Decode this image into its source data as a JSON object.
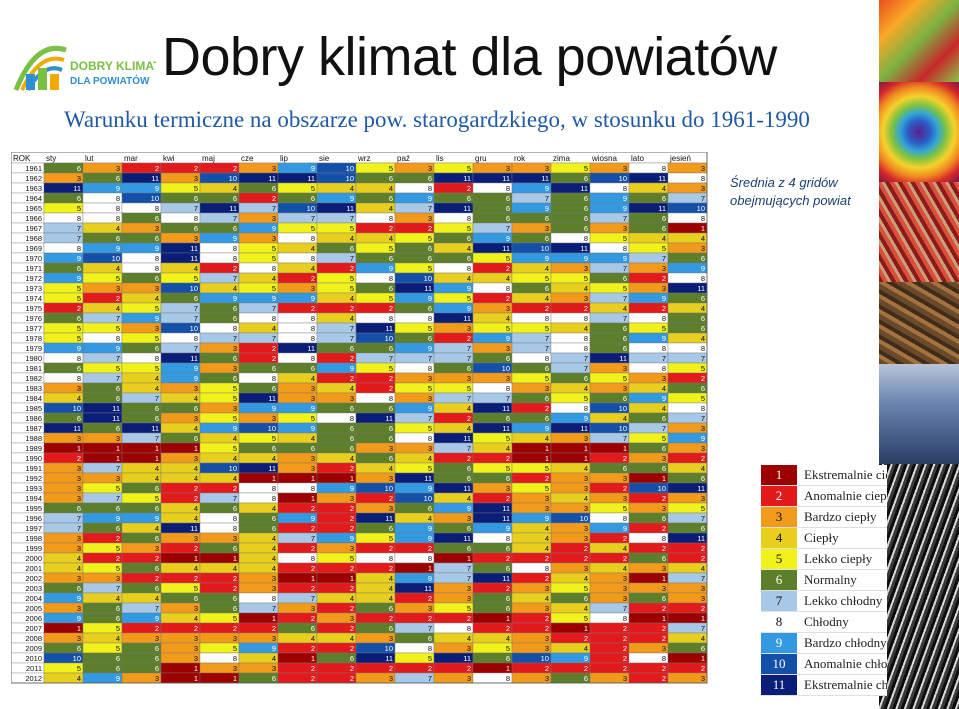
{
  "header": {
    "logo_text_line1": "DOBRY KLIMAT",
    "logo_text_line2": "DLA POWIATÓW",
    "title": "Dobry klimat dla powiatów",
    "subtitle": "Warunku termiczne na obszarze pow. starogardzkiego, w stosunku do 1961-1990"
  },
  "side_note": "Średnia z 4 gridów obejmujących powiat",
  "palette": {
    "1": "#9c0000",
    "2": "#e31a1c",
    "3": "#f29a1a",
    "4": "#e8cf1e",
    "5": "#f2f21b",
    "6": "#5d7f2b",
    "7": "#a8c8e8",
    "8": "#ffffff",
    "9": "#3399e0",
    "10": "#1450a8",
    "11": "#0a1e78"
  },
  "legend": [
    {
      "value": 1,
      "label": "Ekstremalnie ciepły"
    },
    {
      "value": 2,
      "label": "Anomalnie ciepły"
    },
    {
      "value": 3,
      "label": "Bardzo ciepły"
    },
    {
      "value": 4,
      "label": "Ciepły"
    },
    {
      "value": 5,
      "label": "Lekko ciepły"
    },
    {
      "value": 6,
      "label": "Normalny"
    },
    {
      "value": 7,
      "label": "Lekko chłodny"
    },
    {
      "value": 8,
      "label": "Chłodny"
    },
    {
      "value": 9,
      "label": "Bardzo chłodny"
    },
    {
      "value": 10,
      "label": "Anomalnie chłodny"
    },
    {
      "value": 11,
      "label": "Ekstremalnie chłodny"
    }
  ],
  "chart_data": {
    "type": "heatmap",
    "row_header": "ROK",
    "columns": [
      "sty",
      "lut",
      "mar",
      "kwi",
      "maj",
      "cze",
      "lip",
      "sie",
      "wrz",
      "paź",
      "lis",
      "gru",
      "rok",
      "zima",
      "wiosna",
      "lato",
      "jesień"
    ],
    "rows": [
      {
        "year": "1961",
        "values": [
          6,
          3,
          2,
          2,
          2,
          3,
          9,
          10,
          5,
          3,
          5,
          3,
          3,
          5,
          3,
          8,
          3
        ]
      },
      {
        "year": "1962",
        "values": [
          3,
          6,
          11,
          3,
          10,
          11,
          11,
          10,
          6,
          6,
          11,
          11,
          11,
          6,
          10,
          11,
          8
        ]
      },
      {
        "year": "1963",
        "values": [
          11,
          9,
          9,
          5,
          4,
          6,
          5,
          4,
          4,
          8,
          2,
          8,
          9,
          11,
          8,
          4,
          3
        ]
      },
      {
        "year": "1964",
        "values": [
          6,
          8,
          10,
          6,
          6,
          2,
          6,
          9,
          6,
          9,
          6,
          6,
          7,
          6,
          9,
          6,
          7
        ]
      },
      {
        "year": "1965",
        "values": [
          5,
          8,
          8,
          7,
          11,
          7,
          10,
          11,
          4,
          7,
          11,
          6,
          9,
          6,
          9,
          11,
          10
        ]
      },
      {
        "year": "1966",
        "values": [
          8,
          8,
          6,
          8,
          7,
          3,
          7,
          7,
          8,
          3,
          8,
          6,
          6,
          6,
          7,
          6,
          8
        ]
      },
      {
        "year": "1967",
        "values": [
          7,
          4,
          3,
          6,
          6,
          9,
          5,
          5,
          2,
          2,
          5,
          7,
          3,
          6,
          3,
          6,
          1
        ]
      },
      {
        "year": "1968",
        "values": [
          7,
          6,
          6,
          3,
          9,
          3,
          8,
          4,
          4,
          5,
          6,
          9,
          6,
          8,
          5,
          4,
          4
        ]
      },
      {
        "year": "1969",
        "values": [
          8,
          9,
          9,
          11,
          8,
          5,
          4,
          6,
          5,
          6,
          4,
          11,
          10,
          11,
          8,
          5,
          3
        ]
      },
      {
        "year": "1970",
        "values": [
          9,
          10,
          8,
          11,
          8,
          5,
          8,
          7,
          6,
          6,
          6,
          5,
          9,
          9,
          9,
          7,
          6
        ]
      },
      {
        "year": "1971",
        "values": [
          6,
          4,
          8,
          4,
          2,
          8,
          4,
          2,
          9,
          5,
          8,
          2,
          4,
          3,
          7,
          3,
          9
        ]
      },
      {
        "year": "1972",
        "values": [
          9,
          5,
          6,
          5,
          7,
          4,
          2,
          5,
          8,
          10,
          4,
          4,
          5,
          5,
          6,
          2,
          8
        ]
      },
      {
        "year": "1973",
        "values": [
          5,
          3,
          3,
          10,
          4,
          5,
          3,
          5,
          6,
          11,
          9,
          8,
          6,
          4,
          5,
          3,
          11
        ]
      },
      {
        "year": "1974",
        "values": [
          5,
          2,
          4,
          6,
          9,
          9,
          9,
          4,
          5,
          9,
          5,
          2,
          4,
          3,
          7,
          9,
          6
        ]
      },
      {
        "year": "1975",
        "values": [
          2,
          4,
          5,
          7,
          6,
          7,
          2,
          2,
          2,
          6,
          9,
          3,
          2,
          2,
          4,
          2,
          4
        ]
      },
      {
        "year": "1976",
        "values": [
          6,
          7,
          9,
          7,
          6,
          8,
          8,
          4,
          8,
          8,
          11,
          4,
          8,
          8,
          7,
          8,
          6
        ]
      },
      {
        "year": "1977",
        "values": [
          5,
          5,
          3,
          10,
          8,
          4,
          8,
          7,
          11,
          5,
          3,
          5,
          5,
          4,
          6,
          5,
          6
        ]
      },
      {
        "year": "1978",
        "values": [
          5,
          8,
          5,
          8,
          7,
          7,
          8,
          7,
          10,
          6,
          2,
          9,
          7,
          8,
          6,
          9,
          4
        ]
      },
      {
        "year": "1979",
        "values": [
          9,
          9,
          6,
          7,
          3,
          2,
          11,
          6,
          6,
          9,
          7,
          3,
          7,
          8,
          6,
          8,
          8
        ]
      },
      {
        "year": "1980",
        "values": [
          8,
          7,
          8,
          11,
          6,
          2,
          8,
          2,
          7,
          7,
          7,
          6,
          8,
          7,
          11,
          7,
          7
        ]
      },
      {
        "year": "1981",
        "values": [
          6,
          5,
          5,
          9,
          3,
          6,
          6,
          9,
          5,
          8,
          6,
          10,
          6,
          7,
          3,
          8,
          5
        ]
      },
      {
        "year": "1982",
        "values": [
          8,
          7,
          4,
          9,
          6,
          8,
          4,
          2,
          2,
          3,
          3,
          3,
          5,
          6,
          5,
          3,
          2
        ]
      },
      {
        "year": "1983",
        "values": [
          3,
          6,
          4,
          3,
          5,
          6,
          3,
          4,
          2,
          5,
          5,
          8,
          3,
          4,
          3,
          4,
          6
        ]
      },
      {
        "year": "1984",
        "values": [
          4,
          6,
          7,
          4,
          5,
          11,
          3,
          3,
          8,
          3,
          7,
          7,
          6,
          5,
          6,
          9,
          5
        ]
      },
      {
        "year": "1985",
        "values": [
          10,
          11,
          6,
          6,
          3,
          9,
          9,
          6,
          6,
          9,
          4,
          11,
          2,
          8,
          10,
          4,
          8
        ]
      },
      {
        "year": "1986",
        "values": [
          6,
          11,
          6,
          3,
          5,
          3,
          5,
          8,
          11,
          7,
          2,
          6,
          6,
          9,
          4,
          6,
          7
        ]
      },
      {
        "year": "1987",
        "values": [
          11,
          6,
          11,
          4,
          9,
          10,
          9,
          6,
          6,
          5,
          4,
          11,
          9,
          11,
          10,
          7,
          3
        ]
      },
      {
        "year": "1988",
        "values": [
          3,
          3,
          7,
          6,
          4,
          5,
          4,
          6,
          6,
          8,
          11,
          5,
          4,
          3,
          7,
          5,
          9
        ]
      },
      {
        "year": "1989",
        "values": [
          1,
          1,
          1,
          1,
          5,
          6,
          6,
          6,
          3,
          3,
          7,
          4,
          1,
          1,
          1,
          6,
          3
        ]
      },
      {
        "year": "1990",
        "values": [
          2,
          1,
          1,
          3,
          4,
          4,
          3,
          4,
          6,
          4,
          2,
          2,
          1,
          1,
          2,
          3,
          2
        ]
      },
      {
        "year": "1991",
        "values": [
          3,
          7,
          4,
          4,
          10,
          11,
          3,
          2,
          4,
          5,
          6,
          5,
          5,
          4,
          6,
          6,
          4
        ]
      },
      {
        "year": "1992",
        "values": [
          3,
          3,
          4,
          4,
          4,
          1,
          1,
          1,
          3,
          11,
          6,
          6,
          2,
          3,
          3,
          1,
          6
        ]
      },
      {
        "year": "1993",
        "values": [
          3,
          5,
          6,
          2,
          2,
          8,
          8,
          9,
          10,
          9,
          11,
          3,
          5,
          3,
          2,
          10,
          11
        ]
      },
      {
        "year": "1994",
        "values": [
          3,
          7,
          5,
          2,
          7,
          8,
          1,
          3,
          2,
          10,
          4,
          2,
          3,
          4,
          3,
          2,
          3
        ]
      },
      {
        "year": "1995",
        "values": [
          6,
          6,
          6,
          4,
          6,
          4,
          2,
          2,
          3,
          6,
          9,
          11,
          3,
          3,
          5,
          3,
          5
        ]
      },
      {
        "year": "1996",
        "values": [
          7,
          9,
          9,
          4,
          8,
          6,
          9,
          2,
          11,
          4,
          3,
          11,
          9,
          10,
          8,
          6,
          7
        ]
      },
      {
        "year": "1997",
        "values": [
          7,
          6,
          4,
          11,
          8,
          6,
          2,
          2,
          6,
          9,
          6,
          9,
          4,
          3,
          9,
          2,
          6
        ]
      },
      {
        "year": "1998",
        "values": [
          3,
          2,
          6,
          3,
          3,
          4,
          7,
          9,
          5,
          9,
          11,
          8,
          4,
          3,
          2,
          8,
          11
        ]
      },
      {
        "year": "1999",
        "values": [
          3,
          5,
          3,
          2,
          6,
          4,
          2,
          3,
          2,
          2,
          6,
          6,
          4,
          2,
          4,
          2,
          2
        ]
      },
      {
        "year": "2000",
        "values": [
          4,
          2,
          2,
          1,
          1,
          4,
          8,
          5,
          8,
          8,
          1,
          2,
          2,
          2,
          2,
          6,
          2
        ]
      },
      {
        "year": "2001",
        "values": [
          4,
          5,
          6,
          4,
          4,
          4,
          2,
          2,
          2,
          1,
          7,
          6,
          8,
          3,
          4,
          3,
          4
        ]
      },
      {
        "year": "2002",
        "values": [
          3,
          3,
          2,
          2,
          2,
          3,
          1,
          1,
          4,
          9,
          7,
          11,
          2,
          4,
          3,
          1,
          7
        ]
      },
      {
        "year": "2003",
        "values": [
          6,
          7,
          6,
          5,
          2,
          3,
          2,
          2,
          4,
          11,
          3,
          2,
          3,
          5,
          3,
          3,
          3
        ]
      },
      {
        "year": "2004",
        "values": [
          9,
          4,
          4,
          6,
          6,
          8,
          7,
          4,
          4,
          2,
          3,
          6,
          4,
          6,
          3,
          6,
          3
        ]
      },
      {
        "year": "2005",
        "values": [
          3,
          6,
          7,
          3,
          6,
          7,
          3,
          2,
          6,
          3,
          5,
          6,
          3,
          4,
          7,
          2,
          2
        ]
      },
      {
        "year": "2006",
        "values": [
          9,
          6,
          9,
          4,
          5,
          1,
          2,
          3,
          2,
          2,
          2,
          1,
          2,
          5,
          8,
          1,
          1
        ]
      },
      {
        "year": "2007",
        "values": [
          1,
          5,
          2,
          2,
          2,
          2,
          6,
          2,
          6,
          7,
          8,
          2,
          2,
          1,
          2,
          2,
          7
        ]
      },
      {
        "year": "2008",
        "values": [
          3,
          4,
          3,
          3,
          3,
          3,
          4,
          4,
          3,
          6,
          4,
          4,
          3,
          2,
          2,
          2,
          4
        ]
      },
      {
        "year": "2009",
        "values": [
          6,
          5,
          6,
          3,
          5,
          9,
          2,
          2,
          10,
          8,
          3,
          5,
          3,
          4,
          2,
          3,
          6
        ]
      },
      {
        "year": "2010",
        "values": [
          10,
          6,
          6,
          3,
          8,
          4,
          1,
          6,
          11,
          5,
          11,
          6,
          10,
          9,
          2,
          8,
          1
        ]
      },
      {
        "year": "2011",
        "values": [
          5,
          6,
          6,
          1,
          3,
          3,
          2,
          2,
          2,
          2,
          2,
          1,
          2,
          2,
          2,
          2,
          2
        ]
      },
      {
        "year": "2012",
        "values": [
          4,
          9,
          3,
          1,
          1,
          6,
          2,
          2,
          3,
          7,
          3,
          8,
          3,
          6,
          3,
          2,
          3
        ]
      }
    ]
  }
}
